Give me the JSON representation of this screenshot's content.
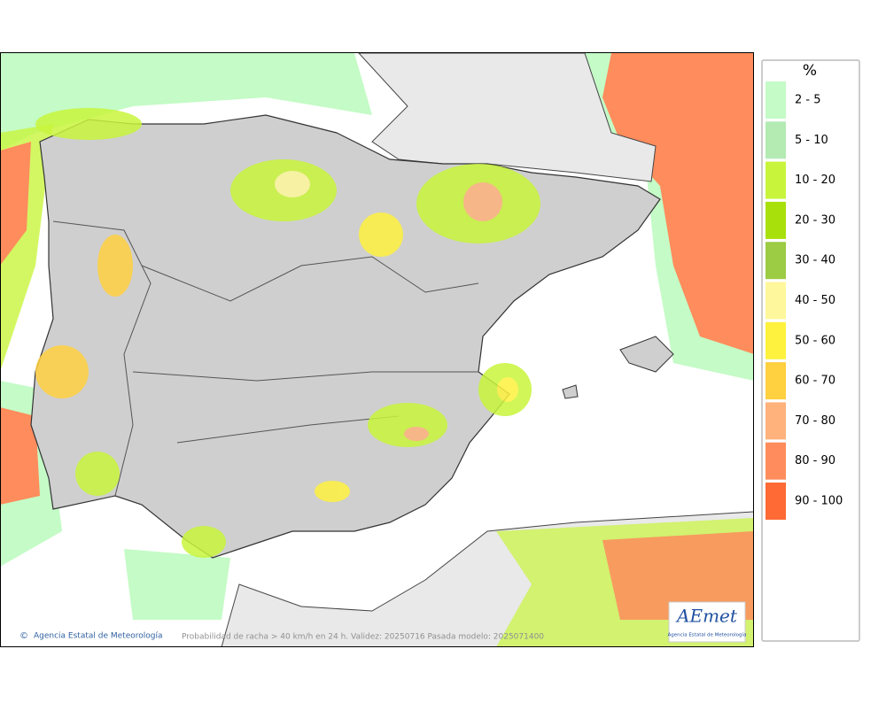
{
  "legend": {
    "title": "%",
    "items": [
      {
        "label": "2 - 5",
        "color": "#c4fbc6"
      },
      {
        "label": "5 - 10",
        "color": "#b3ebb3"
      },
      {
        "label": "10 - 20",
        "color": "#c8f53c"
      },
      {
        "label": "20 - 30",
        "color": "#a8e00c"
      },
      {
        "label": "30 - 40",
        "color": "#9ccb44"
      },
      {
        "label": "40 - 50",
        "color": "#fff79c"
      },
      {
        "label": "50 - 60",
        "color": "#fff23e"
      },
      {
        "label": "60 - 70",
        "color": "#ffd040"
      },
      {
        "label": "70 - 80",
        "color": "#ffb27c"
      },
      {
        "label": "80 - 90",
        "color": "#ff8c5c"
      },
      {
        "label": "90 - 100",
        "color": "#ff6a35"
      }
    ]
  },
  "footer": {
    "credit": "Agencia Estatal de Meteorología",
    "caption": "Probabilidad de racha > 40 km/h en 24 h. Validez: 20250716 Pasada modelo: 2025071400"
  },
  "logo": {
    "name": "AEmet",
    "subtitle": "Agencia Estatal de Meteorología"
  }
}
